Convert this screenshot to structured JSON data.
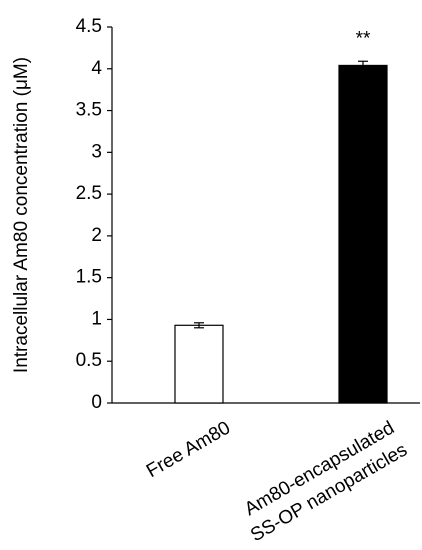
{
  "chart_data": {
    "type": "bar",
    "y_label": "Intracellular Am80 concentration (μM)",
    "categories": [
      "Free Am80",
      [
        "Am80-encapsulated",
        "SS-OP nanoparticles"
      ]
    ],
    "values": [
      0.93,
      4.04
    ],
    "errors": [
      0.03,
      0.05
    ],
    "colors": [
      "#ffffff",
      "#000000"
    ],
    "annotation": "**",
    "ylim": [
      0,
      4.5
    ],
    "yticks": [
      0,
      0.5,
      1,
      1.5,
      2,
      2.5,
      3,
      3.5,
      4,
      4.5
    ],
    "grid": false
  }
}
